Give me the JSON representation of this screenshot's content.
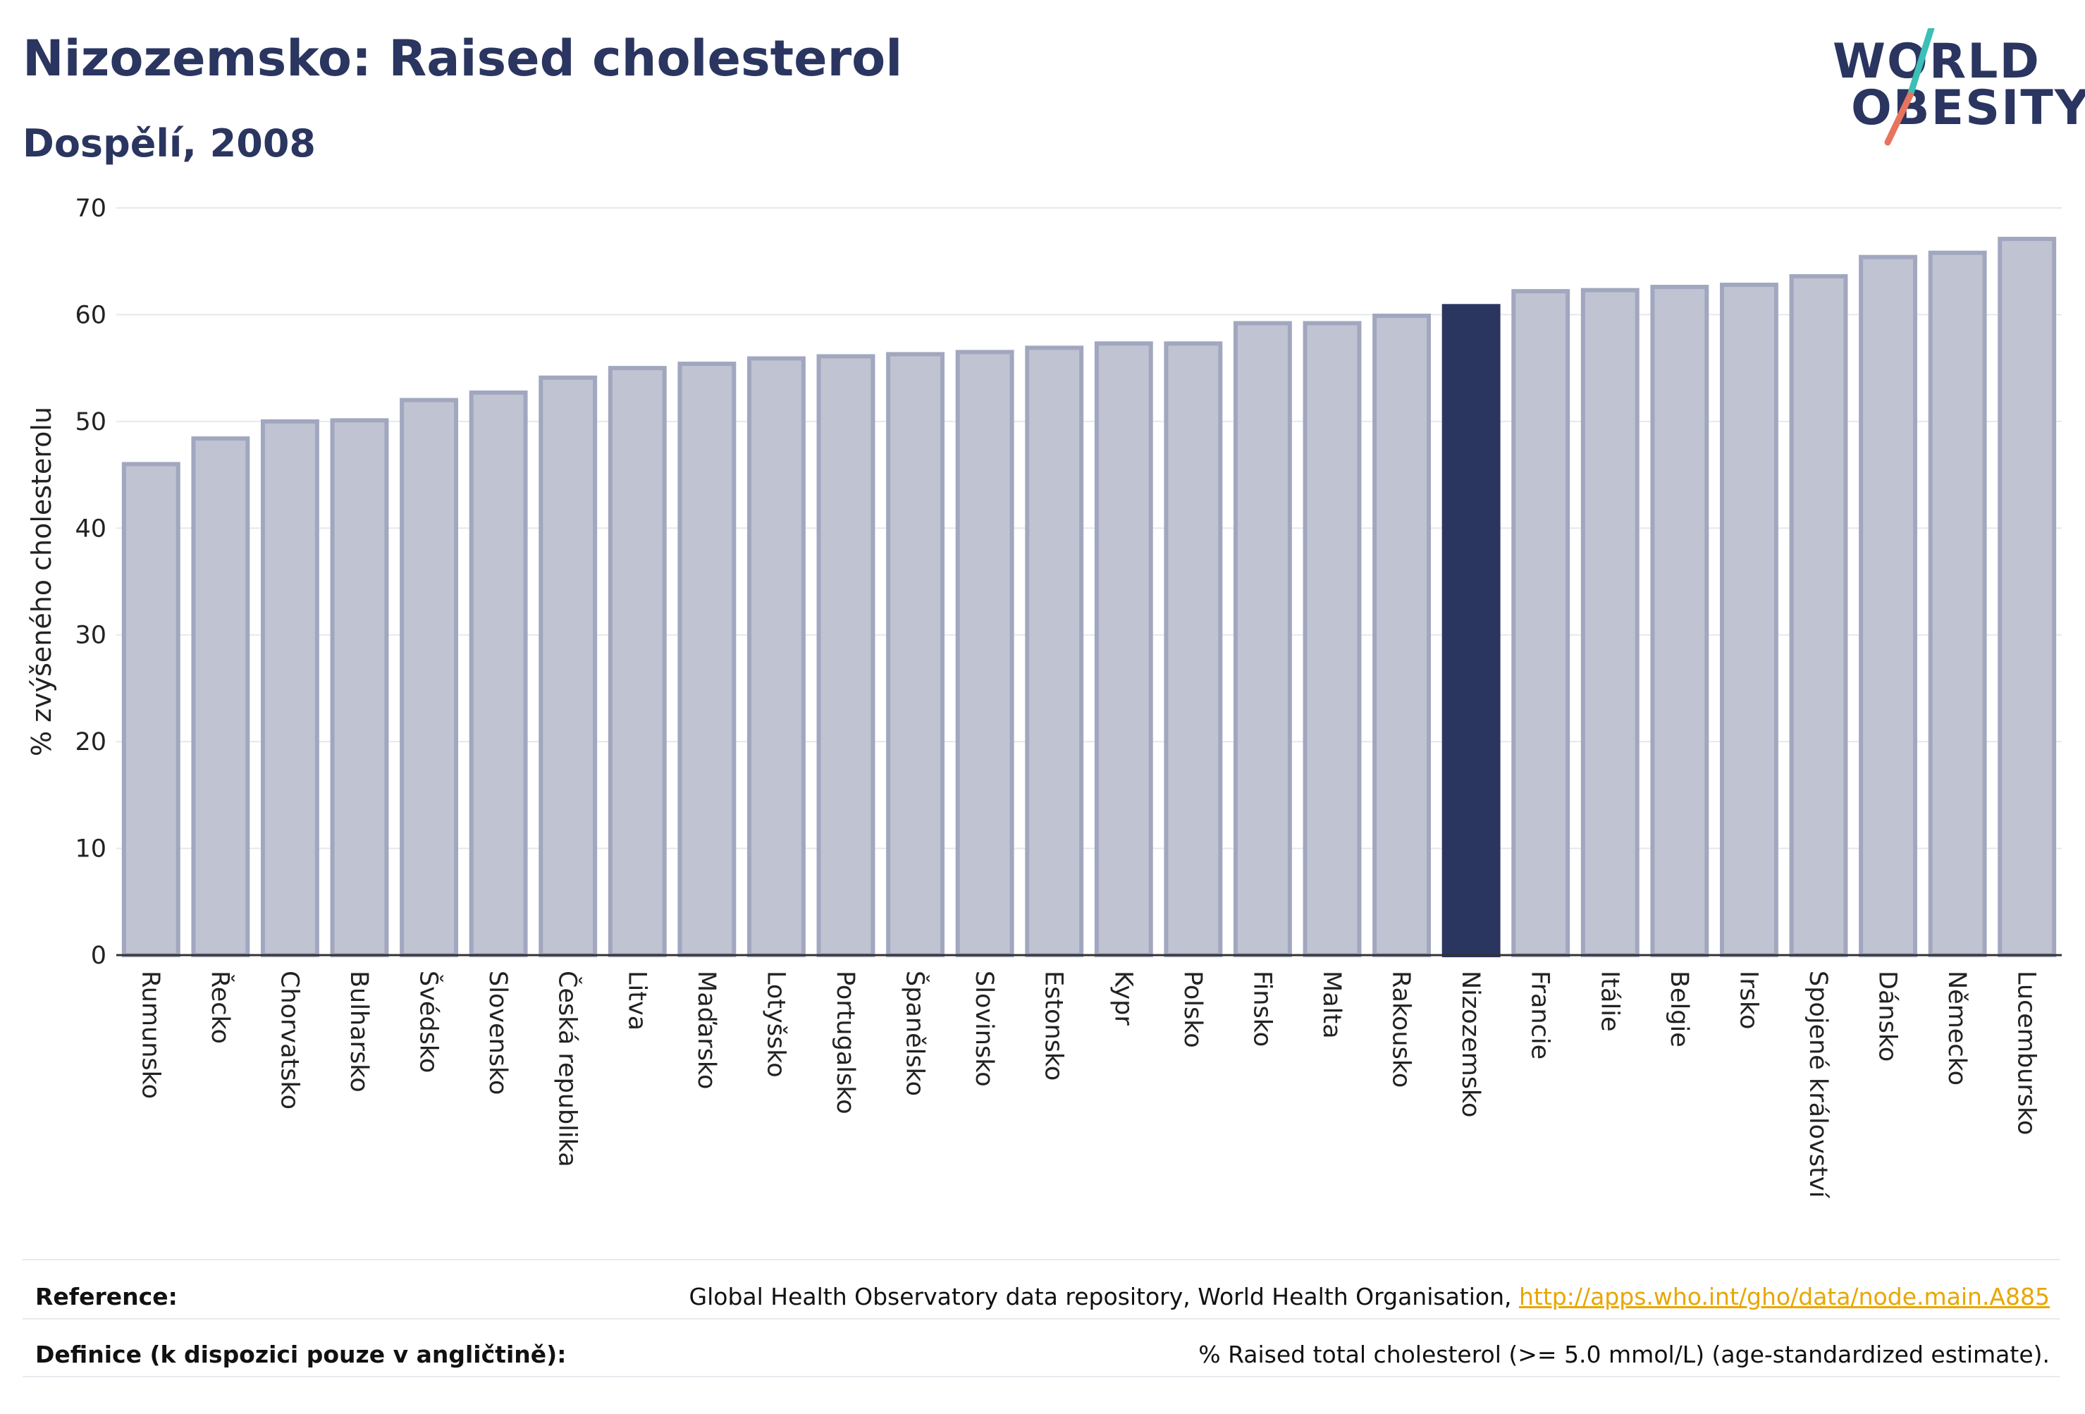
{
  "header": {
    "title": "Nizozemsko: Raised cholesterol",
    "subtitle": "Dospělí, 2008"
  },
  "logo": {
    "line1": "WORLD",
    "line2": "OBESITY",
    "colors": {
      "teal": "#3bbfb6",
      "coral": "#e8735e"
    }
  },
  "colors": {
    "bar": "#c0c3d1",
    "bar_border": "#a1a7bf",
    "highlight": "#2a3560",
    "grid": "#e6e8ee",
    "axis": "#333333"
  },
  "chart_data": {
    "type": "bar",
    "title": "Nizozemsko: Raised cholesterol",
    "subtitle": "Dospělí, 2008",
    "ylabel": "% zvýšeného cholesterolu",
    "xlabel": "",
    "ylim": [
      0,
      70
    ],
    "yticks": [
      0,
      10,
      20,
      30,
      40,
      50,
      60,
      70
    ],
    "grid": true,
    "highlight": "Nizozemsko",
    "categories": [
      "Rumunsko",
      "Řecko",
      "Chorvatsko",
      "Bulharsko",
      "Švédsko",
      "Slovensko",
      "Česká republika",
      "Litva",
      "Maďarsko",
      "Lotyšsko",
      "Portugalsko",
      "Španělsko",
      "Slovinsko",
      "Estonsko",
      "Kypr",
      "Polsko",
      "Finsko",
      "Malta",
      "Rakousko",
      "Nizozemsko",
      "Francie",
      "Itálie",
      "Belgie",
      "Irsko",
      "Spojené království",
      "Dánsko",
      "Německo",
      "Lucembursko"
    ],
    "values": [
      46.0,
      48.4,
      50.0,
      50.1,
      52.0,
      52.7,
      54.1,
      55.0,
      55.4,
      55.9,
      56.1,
      56.3,
      56.5,
      56.9,
      57.3,
      57.3,
      59.2,
      59.2,
      59.9,
      60.8,
      62.2,
      62.3,
      62.6,
      62.8,
      63.6,
      65.4,
      65.8,
      67.1
    ]
  },
  "footer": {
    "reference_label": "Reference:",
    "reference_text": "Global Health Observatory data repository, World Health Organisation, ",
    "reference_link": "http://apps.who.int/gho/data/node.main.A885",
    "definition_label": "Definice (k dispozici pouze v angličtině):",
    "definition_text": "% Raised total cholesterol (>= 5.0 mmol/L) (age-standardized estimate)."
  }
}
